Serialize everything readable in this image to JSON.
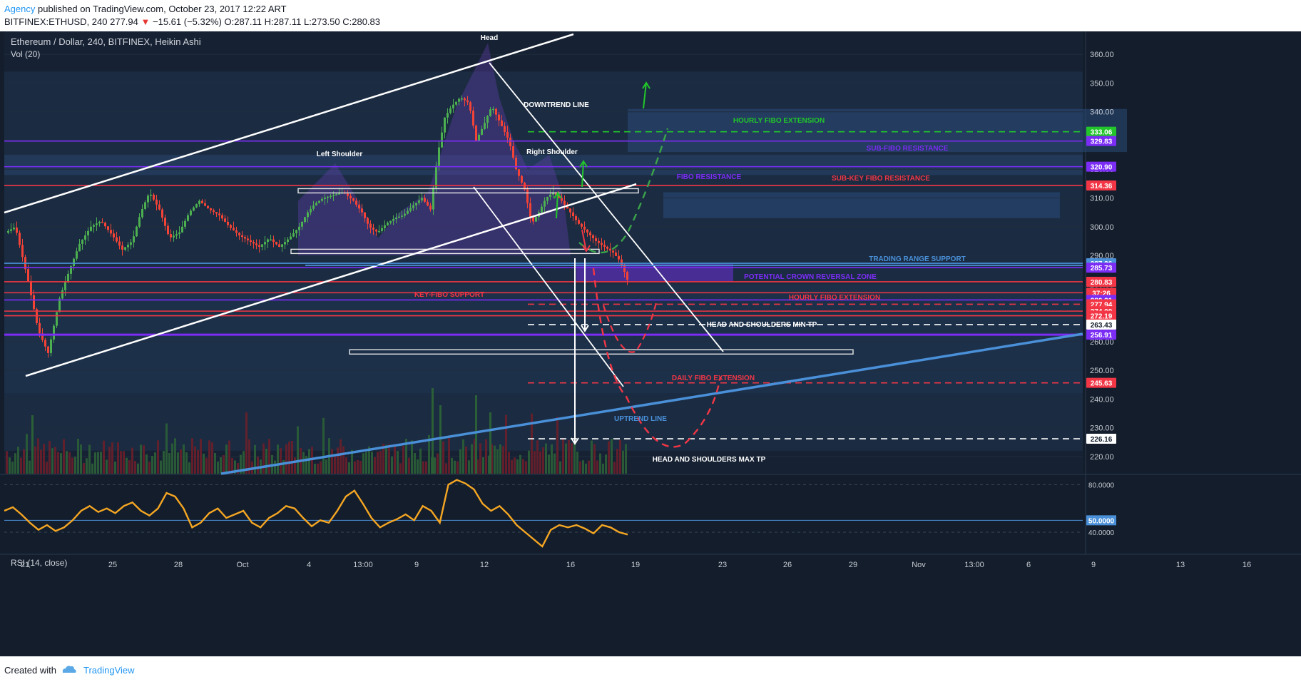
{
  "header": {
    "author": "Agency",
    "published": "published on TradingView.com, October 23, 2017 12:22 ART",
    "symbol": "BITFINEX:ETHUSD, 240",
    "last": "277.94",
    "change": "−15.61 (−5.32%)",
    "ohlc": "O:287.11 H:287.11 L:273.50 C:280.83"
  },
  "legend": {
    "main": "Ethereum / Dollar, 240, BITFINEX, Heikin Ashi",
    "vol": "Vol (20)",
    "rsi": "RSI (14, close)"
  },
  "footer": {
    "created": "Created with",
    "brand": "TradingView"
  },
  "colors": {
    "up": "#4caf50",
    "down": "#f44336",
    "rsi": "#f5a623",
    "purple": "#7b2cf5",
    "blue": "#4a90d9",
    "red": "#f23645",
    "green": "#22c62b",
    "bg": "#131d2b"
  },
  "chart_data": {
    "type": "candlestick",
    "title": "Ethereum / Dollar, 240, BITFINEX, Heikin Ashi",
    "price_axis": {
      "ylim": [
        214,
        368
      ],
      "ticks": [
        "360.00",
        "350.00",
        "340.00",
        "330.00",
        "320.00",
        "310.00",
        "300.00",
        "290.00",
        "280.00",
        "270.00",
        "260.00",
        "250.00",
        "240.00",
        "230.00",
        "220.00"
      ]
    },
    "time_axis": [
      "21",
      "25",
      "28",
      "Oct",
      "4",
      "13:00",
      "9",
      "12",
      "16",
      "19",
      "23",
      "26",
      "29",
      "Nov",
      "13:00",
      "6",
      "9",
      "13",
      "16"
    ],
    "price_path": [
      [
        0,
        297
      ],
      [
        20,
        300
      ],
      [
        38,
        281
      ],
      [
        52,
        264
      ],
      [
        66,
        256
      ],
      [
        82,
        275
      ],
      [
        96,
        285
      ],
      [
        110,
        294
      ],
      [
        126,
        300
      ],
      [
        140,
        302
      ],
      [
        156,
        297
      ],
      [
        170,
        292
      ],
      [
        184,
        295
      ],
      [
        196,
        305
      ],
      [
        208,
        312
      ],
      [
        222,
        306
      ],
      [
        236,
        296
      ],
      [
        250,
        298
      ],
      [
        264,
        305
      ],
      [
        278,
        309
      ],
      [
        292,
        306
      ],
      [
        306,
        304
      ],
      [
        320,
        300
      ],
      [
        334,
        297
      ],
      [
        348,
        295
      ],
      [
        362,
        293
      ],
      [
        376,
        296
      ],
      [
        390,
        293
      ],
      [
        404,
        296
      ],
      [
        418,
        300
      ],
      [
        430,
        305
      ],
      [
        440,
        308
      ],
      [
        452,
        310
      ],
      [
        466,
        311
      ],
      [
        480,
        312
      ],
      [
        494,
        309
      ],
      [
        506,
        305
      ],
      [
        516,
        300
      ],
      [
        528,
        298
      ],
      [
        540,
        301
      ],
      [
        552,
        303
      ],
      [
        564,
        304
      ],
      [
        576,
        307
      ],
      [
        590,
        310
      ],
      [
        602,
        306
      ],
      [
        612,
        325
      ],
      [
        622,
        338
      ],
      [
        632,
        342
      ],
      [
        644,
        345
      ],
      [
        656,
        343
      ],
      [
        666,
        330
      ],
      [
        676,
        335
      ],
      [
        688,
        342
      ],
      [
        700,
        336
      ],
      [
        712,
        330
      ],
      [
        722,
        320
      ],
      [
        734,
        313
      ],
      [
        744,
        301
      ],
      [
        754,
        305
      ],
      [
        764,
        310
      ],
      [
        774,
        312
      ],
      [
        786,
        309
      ],
      [
        798,
        305
      ],
      [
        810,
        301
      ],
      [
        822,
        298
      ],
      [
        834,
        295
      ],
      [
        846,
        293
      ],
      [
        858,
        291
      ],
      [
        868,
        288
      ],
      [
        876,
        283
      ],
      [
        880,
        280
      ]
    ],
    "horizontal_levels": [
      {
        "label": "333.06",
        "price": 333.06,
        "color": "#22c62b"
      },
      {
        "label": "329.83",
        "price": 329.83,
        "color": "#7b2cf5"
      },
      {
        "label": "320.90",
        "price": 320.9,
        "color": "#7b2cf5"
      },
      {
        "label": "314.36",
        "price": 314.36,
        "color": "#f23645"
      },
      {
        "label": "287.26",
        "price": 287.26,
        "color": "#4a90d9"
      },
      {
        "label": "285.73",
        "price": 285.73,
        "color": "#7b2cf5"
      },
      {
        "label": "280.83",
        "price": 280.83,
        "color": "#f23645"
      },
      {
        "label": "37:26",
        "price": 277.0,
        "color": "#f23645"
      },
      {
        "label": "280.31",
        "price": 274.5,
        "color": "#7b2cf5"
      },
      {
        "label": "277.94",
        "price": 273.0,
        "color": "#f23645"
      },
      {
        "label": "274.09",
        "price": 270.6,
        "color": "#f23645"
      },
      {
        "label": "272.19",
        "price": 269.0,
        "color": "#f23645"
      },
      {
        "label": "263.43",
        "price": 265.9,
        "color": "#ffffff"
      },
      {
        "label": "256.91",
        "price": 262.4,
        "color": "#7b2cf5"
      },
      {
        "label": "245.63",
        "price": 245.63,
        "color": "#f23645"
      },
      {
        "label": "226.16",
        "price": 226.16,
        "color": "#ffffff"
      }
    ],
    "annotations": [
      "Head",
      "Left Shoulder",
      "Right Shoulder",
      "DOWNTREND LINE",
      "HOURLY FIBO EXTENSION",
      "SUB-FIBO RESISTANCE",
      "FIBO RESISTANCE",
      "SUB-KEY FIBO RESISTANCE",
      "TRADING RANGE SUPPORT",
      "POTENTIAL CROWN REVERSAL ZONE",
      "KEY-FIBO SUPPORT",
      "HOURLY FIBO EXTENSION",
      "HEAD AND SHOULDERS MIN TP",
      "DAILY FIBO EXTENSION",
      "UPTREND LINE",
      "HEAD AND SHOULDERS MAX TP"
    ],
    "rsi": {
      "label": "RSI (14, close)",
      "ticks": [
        "80.0000",
        "50.0000",
        "40.0000"
      ],
      "ylim": [
        22,
        88
      ],
      "values": [
        58,
        61,
        55,
        48,
        42,
        46,
        41,
        44,
        50,
        58,
        62,
        57,
        60,
        56,
        62,
        65,
        58,
        54,
        60,
        73,
        70,
        60,
        44,
        48,
        56,
        60,
        52,
        55,
        58,
        48,
        44,
        52,
        56,
        62,
        60,
        52,
        45,
        50,
        48,
        58,
        70,
        75,
        64,
        52,
        44,
        48,
        51,
        55,
        50,
        62,
        58,
        48,
        80,
        84,
        81,
        76,
        64,
        58,
        62,
        55,
        46,
        40,
        34,
        28,
        42,
        46,
        44,
        46,
        43,
        39,
        46,
        44,
        40,
        38
      ]
    }
  }
}
